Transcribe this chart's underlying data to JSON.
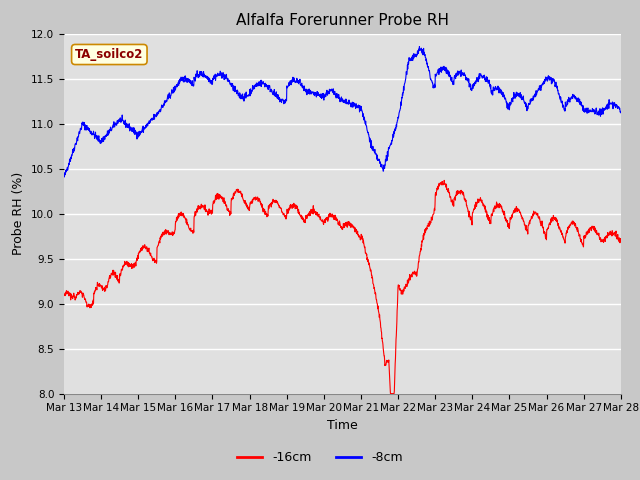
{
  "title": "Alfalfa Forerunner Probe RH",
  "ylabel": "Probe RH (%)",
  "xlabel": "Time",
  "ylim": [
    8.0,
    12.0
  ],
  "yticks": [
    8.0,
    8.5,
    9.0,
    9.5,
    10.0,
    10.5,
    11.0,
    11.5,
    12.0
  ],
  "xtick_labels": [
    "Mar 13",
    "Mar 14",
    "Mar 15",
    "Mar 16",
    "Mar 17",
    "Mar 18",
    "Mar 19",
    "Mar 20",
    "Mar 21",
    "Mar 22",
    "Mar 23",
    "Mar 24",
    "Mar 25",
    "Mar 26",
    "Mar 27",
    "Mar 28"
  ],
  "annotation_text": "TA_soilco2",
  "fig_bg_color": "#c8c8c8",
  "plot_bg_color": "#e0e0e0",
  "line_color_16cm": "#ff0000",
  "line_color_8cm": "#0000ff",
  "legend_label_16cm": "-16cm",
  "legend_label_8cm": "-8cm",
  "title_fontsize": 11,
  "axis_label_fontsize": 9,
  "tick_fontsize": 7.5
}
